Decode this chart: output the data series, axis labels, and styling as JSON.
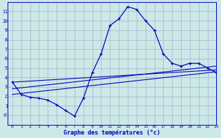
{
  "hours": [
    0,
    1,
    2,
    3,
    4,
    5,
    6,
    7,
    8,
    9,
    10,
    11,
    12,
    13,
    14,
    15,
    16,
    17,
    18,
    19,
    20,
    21,
    22,
    23
  ],
  "temps": [
    3.5,
    2.2,
    1.9,
    1.8,
    1.6,
    1.1,
    0.5,
    -0.1,
    1.8,
    4.5,
    6.5,
    9.5,
    10.2,
    11.5,
    11.2,
    10.0,
    9.0,
    6.5,
    5.5,
    5.2,
    5.5,
    5.5,
    5.0,
    4.5
  ],
  "trend_lines": [
    [
      3.5,
      4.8
    ],
    [
      2.8,
      5.2
    ],
    [
      2.2,
      4.6
    ]
  ],
  "bg_color": "#cce8e8",
  "grid_color": "#b0b8c8",
  "line_color": "#0000bb",
  "xlabel": "Graphe des températures (°c)",
  "xlim": [
    -0.5,
    23
  ],
  "ylim": [
    -1,
    12
  ],
  "yticks": [
    0,
    1,
    2,
    3,
    4,
    5,
    6,
    7,
    8,
    9,
    10,
    11
  ],
  "ytick_labels": [
    "-0",
    "1",
    "2",
    "3",
    "4",
    "5",
    "6",
    "7",
    "8",
    "9",
    "10",
    "11"
  ],
  "xticks": [
    0,
    1,
    2,
    3,
    4,
    5,
    6,
    7,
    8,
    9,
    10,
    11,
    12,
    13,
    14,
    15,
    16,
    17,
    18,
    19,
    20,
    21,
    22,
    23
  ]
}
